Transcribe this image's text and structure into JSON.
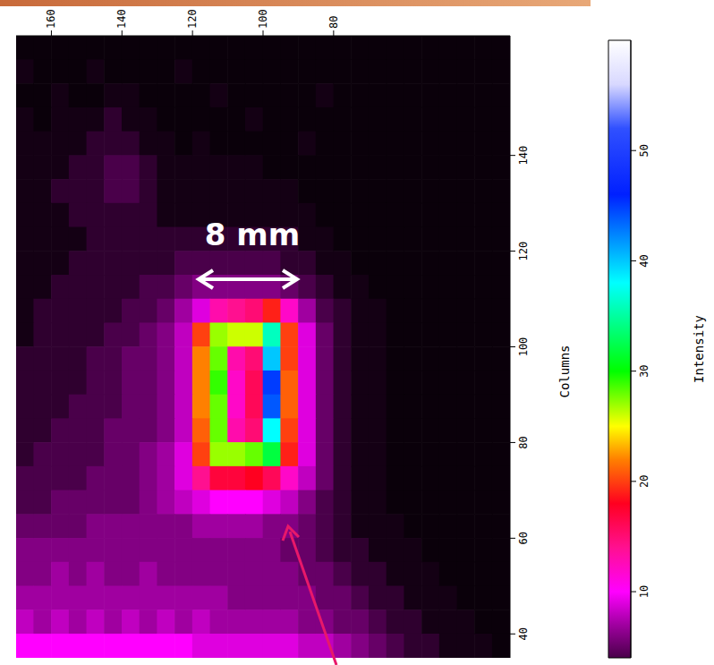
{
  "chart_data": {
    "type": "heatmap",
    "ylabel": "Columns",
    "annotations": [
      "8 mm"
    ],
    "xlim": [
      170,
      30
    ],
    "xticks": [
      160,
      140,
      120,
      100,
      80
    ],
    "ylim": [
      35,
      165
    ],
    "yticks": [
      40,
      60,
      80,
      100,
      120,
      140
    ],
    "x": [
      167.5,
      162.5,
      157.5,
      152.5,
      147.5,
      142.5,
      137.5,
      132.5,
      127.5,
      122.5,
      117.5,
      112.5,
      107.5,
      102.5,
      97.5,
      92.5,
      87.5,
      82.5,
      77.5,
      72.5,
      67.5,
      62.5,
      57.5,
      52.5,
      47.5,
      42.5,
      37.5,
      32.5
    ],
    "y": [
      162.5,
      157.5,
      152.5,
      147.5,
      142.5,
      137.5,
      132.5,
      127.5,
      122.5,
      117.5,
      112.5,
      107.5,
      102.5,
      97.5,
      92.5,
      87.5,
      82.5,
      77.5,
      72.5,
      67.5,
      62.5,
      57.5,
      52.5,
      47.5,
      42.5,
      37.5
    ],
    "z": [
      [
        1,
        1,
        1,
        1,
        1,
        1,
        1,
        1,
        1,
        1,
        1,
        1,
        1,
        1,
        1,
        1,
        1,
        1,
        1,
        1,
        1,
        1,
        1,
        1,
        1,
        1,
        1,
        1
      ],
      [
        2,
        1,
        1,
        1,
        2,
        1,
        1,
        1,
        1,
        2,
        1,
        1,
        1,
        1,
        1,
        1,
        1,
        1,
        1,
        1,
        1,
        1,
        1,
        1,
        1,
        1,
        1,
        1
      ],
      [
        1,
        1,
        2,
        1,
        1,
        2,
        2,
        1,
        1,
        1,
        1,
        2,
        1,
        1,
        1,
        1,
        1,
        2,
        1,
        1,
        1,
        1,
        1,
        1,
        1,
        1,
        1,
        1
      ],
      [
        2,
        1,
        2,
        2,
        2,
        3,
        2,
        2,
        1,
        1,
        1,
        1,
        1,
        2,
        1,
        1,
        1,
        1,
        1,
        1,
        1,
        1,
        1,
        1,
        1,
        1,
        1,
        1
      ],
      [
        2,
        2,
        2,
        2,
        3,
        3,
        3,
        2,
        2,
        1,
        2,
        1,
        1,
        1,
        1,
        1,
        2,
        1,
        1,
        1,
        1,
        1,
        1,
        1,
        1,
        1,
        1,
        1
      ],
      [
        2,
        2,
        2,
        3,
        3,
        4,
        4,
        3,
        2,
        2,
        2,
        2,
        2,
        2,
        1,
        1,
        1,
        1,
        1,
        1,
        1,
        1,
        1,
        1,
        1,
        1,
        1,
        1
      ],
      [
        2,
        2,
        3,
        3,
        3,
        4,
        4,
        3,
        2,
        2,
        2,
        2,
        2,
        2,
        2,
        2,
        1,
        1,
        1,
        1,
        1,
        1,
        1,
        1,
        1,
        1,
        1,
        1
      ],
      [
        2,
        2,
        2,
        3,
        3,
        3,
        3,
        3,
        2,
        2,
        2,
        2,
        2,
        2,
        2,
        2,
        2,
        1,
        1,
        1,
        1,
        1,
        1,
        1,
        1,
        1,
        1,
        1
      ],
      [
        2,
        2,
        2,
        2,
        3,
        3,
        3,
        3,
        3,
        3,
        3,
        3,
        3,
        3,
        3,
        3,
        2,
        2,
        1,
        1,
        1,
        1,
        1,
        1,
        1,
        1,
        1,
        1
      ],
      [
        2,
        2,
        2,
        3,
        3,
        3,
        3,
        3,
        3,
        4,
        4,
        4,
        4,
        4,
        4,
        3,
        3,
        2,
        2,
        1,
        1,
        1,
        1,
        1,
        1,
        1,
        1,
        1
      ],
      [
        2,
        2,
        3,
        3,
        3,
        3,
        3,
        4,
        4,
        5,
        6,
        6,
        6,
        6,
        6,
        5,
        4,
        3,
        2,
        2,
        1,
        1,
        1,
        1,
        1,
        1,
        1,
        1
      ],
      [
        2,
        3,
        3,
        3,
        3,
        3,
        4,
        4,
        5,
        7,
        9,
        13,
        14,
        15,
        19,
        12,
        7,
        4,
        3,
        2,
        2,
        1,
        1,
        1,
        1,
        1,
        1,
        1
      ],
      [
        2,
        3,
        3,
        3,
        3,
        4,
        4,
        5,
        6,
        8,
        20,
        27,
        26,
        26,
        36,
        20,
        9,
        5,
        3,
        2,
        2,
        1,
        1,
        1,
        1,
        1,
        1,
        1
      ],
      [
        3,
        3,
        3,
        3,
        4,
        4,
        5,
        5,
        6,
        8,
        22,
        28,
        13,
        15,
        40,
        20,
        9,
        5,
        3,
        2,
        2,
        1,
        1,
        1,
        1,
        1,
        1,
        1
      ],
      [
        3,
        3,
        3,
        3,
        4,
        4,
        5,
        5,
        6,
        8,
        22,
        29,
        12,
        16,
        45,
        21,
        9,
        5,
        3,
        2,
        2,
        1,
        1,
        1,
        1,
        1,
        1,
        1
      ],
      [
        3,
        3,
        3,
        4,
        4,
        4,
        5,
        5,
        6,
        8,
        22,
        28,
        12,
        16,
        44,
        21,
        9,
        5,
        3,
        2,
        2,
        1,
        1,
        1,
        1,
        1,
        1,
        1
      ],
      [
        3,
        3,
        4,
        4,
        4,
        5,
        5,
        5,
        6,
        8,
        21,
        28,
        13,
        15,
        38,
        20,
        9,
        5,
        3,
        2,
        2,
        1,
        1,
        1,
        1,
        1,
        1,
        1
      ],
      [
        3,
        4,
        4,
        4,
        4,
        5,
        5,
        6,
        7,
        9,
        20,
        27,
        27,
        28,
        32,
        19,
        9,
        5,
        3,
        2,
        2,
        1,
        1,
        1,
        1,
        1,
        1,
        1
      ],
      [
        4,
        4,
        4,
        4,
        5,
        5,
        5,
        6,
        7,
        9,
        14,
        17,
        17,
        18,
        16,
        12,
        8,
        5,
        3,
        2,
        2,
        1,
        1,
        1,
        1,
        1,
        1,
        1
      ],
      [
        4,
        4,
        5,
        5,
        5,
        5,
        5,
        6,
        7,
        8,
        9,
        10,
        10,
        10,
        9,
        8,
        6,
        4,
        3,
        2,
        2,
        1,
        1,
        1,
        1,
        1,
        1,
        1
      ],
      [
        5,
        5,
        5,
        5,
        6,
        6,
        6,
        6,
        6,
        6,
        7,
        7,
        7,
        7,
        6,
        6,
        5,
        4,
        3,
        2,
        2,
        2,
        1,
        1,
        1,
        1,
        1,
        1
      ],
      [
        6,
        6,
        6,
        6,
        6,
        6,
        6,
        6,
        6,
        6,
        6,
        6,
        6,
        6,
        6,
        5,
        5,
        4,
        3,
        3,
        2,
        2,
        2,
        1,
        1,
        1,
        1,
        1
      ],
      [
        6,
        6,
        7,
        6,
        7,
        6,
        6,
        7,
        6,
        6,
        6,
        6,
        6,
        6,
        6,
        6,
        5,
        5,
        4,
        3,
        3,
        2,
        2,
        2,
        1,
        1,
        1,
        1
      ],
      [
        7,
        7,
        7,
        7,
        7,
        7,
        7,
        7,
        7,
        7,
        7,
        7,
        6,
        6,
        6,
        6,
        6,
        5,
        5,
        4,
        3,
        3,
        2,
        2,
        2,
        1,
        1,
        1
      ],
      [
        8,
        7,
        8,
        7,
        8,
        7,
        8,
        7,
        8,
        7,
        8,
        7,
        7,
        7,
        7,
        7,
        6,
        6,
        5,
        5,
        4,
        3,
        3,
        2,
        2,
        2,
        1,
        1
      ],
      [
        10,
        10,
        10,
        10,
        10,
        10,
        10,
        10,
        10,
        10,
        9,
        9,
        9,
        9,
        9,
        9,
        8,
        8,
        7,
        6,
        5,
        4,
        3,
        3,
        2,
        2,
        2,
        1
      ]
    ],
    "colorbar": {
      "label": "Intensity",
      "range": [
        4,
        60
      ],
      "ticks": [
        10,
        20,
        30,
        40,
        50
      ]
    }
  }
}
